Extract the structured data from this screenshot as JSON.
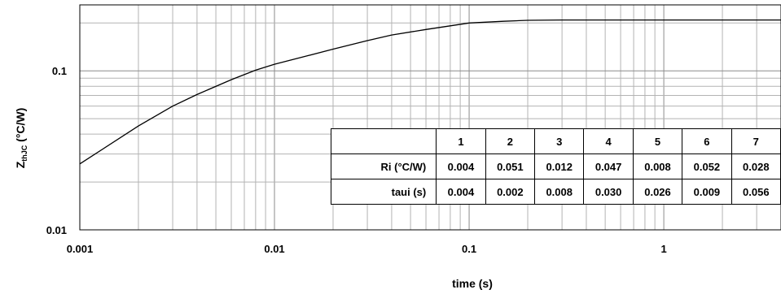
{
  "chart_data": {
    "type": "line",
    "title": "",
    "xlabel": "time (s)",
    "ylabel_main": "Z",
    "ylabel_sub": "thJC",
    "ylabel_unit": " (°C/W)",
    "x_scale": "log",
    "y_scale": "log",
    "xlim": [
      0.001,
      4.0
    ],
    "ylim": [
      0.01,
      0.26
    ],
    "grid": true,
    "x_tick_labels": [
      "0.001",
      "0.01",
      "0.1",
      "1"
    ],
    "x_tick_values": [
      0.001,
      0.01,
      0.1,
      1
    ],
    "y_tick_labels": [
      "0.01",
      "0.1"
    ],
    "y_tick_values": [
      0.01,
      0.1
    ],
    "series": [
      {
        "x": [
          0.001,
          0.002,
          0.003,
          0.004,
          0.006,
          0.008,
          0.01,
          0.015,
          0.02,
          0.03,
          0.04,
          0.06,
          0.08,
          0.1,
          0.15,
          0.2,
          0.3,
          0.5,
          1,
          2,
          4
        ],
        "y": [
          0.026,
          0.045,
          0.06,
          0.071,
          0.088,
          0.101,
          0.11,
          0.125,
          0.137,
          0.155,
          0.168,
          0.182,
          0.192,
          0.2,
          0.205,
          0.208,
          0.209,
          0.209,
          0.209,
          0.209,
          0.209
        ]
      }
    ],
    "table": {
      "columns": [
        "",
        "1",
        "2",
        "3",
        "4",
        "5",
        "6",
        "7"
      ],
      "rows": [
        {
          "label": "Ri (°C/W)",
          "values": [
            "0.004",
            "0.051",
            "0.012",
            "0.047",
            "0.008",
            "0.052",
            "0.028"
          ]
        },
        {
          "label": "taui (s)",
          "values": [
            "0.004",
            "0.002",
            "0.008",
            "0.030",
            "0.026",
            "0.009",
            "0.056"
          ]
        }
      ]
    },
    "colors": {
      "line": "#000000",
      "grid": "#b3b3b3"
    }
  }
}
